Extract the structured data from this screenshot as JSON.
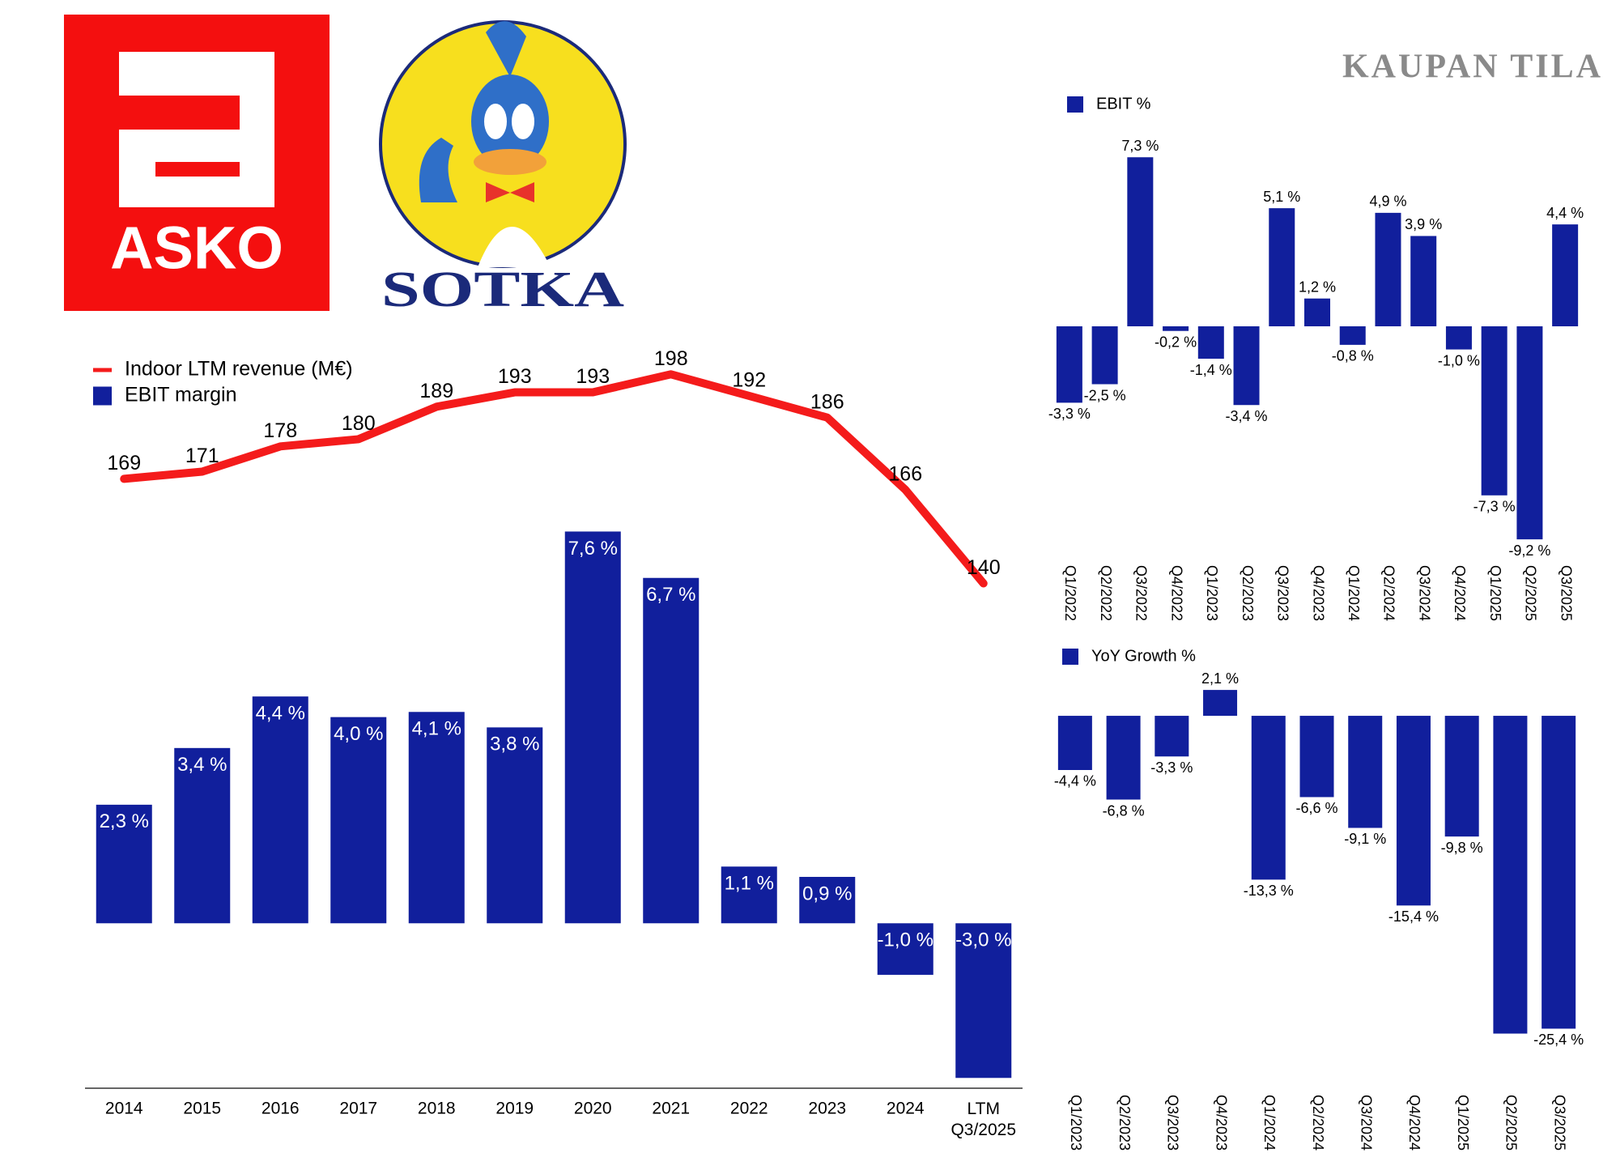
{
  "header": {
    "brand": "KAUPAN TILA",
    "logos": [
      "ASKO",
      "SOTKA"
    ]
  },
  "chart_data": [
    {
      "type": "bar_line",
      "categories": [
        "2014",
        "2015",
        "2016",
        "2017",
        "2018",
        "2019",
        "2020",
        "2021",
        "2022",
        "2023",
        "2024",
        "LTM Q3/2025"
      ],
      "series": [
        {
          "name": "Indoor LTM revenue (M€)",
          "type": "line",
          "axis": "y2",
          "color": "#f41b1b",
          "values": [
            169,
            171,
            178,
            180,
            189,
            193,
            193,
            198,
            192,
            186,
            166,
            140
          ]
        },
        {
          "name": "EBIT margin",
          "type": "bar",
          "color": "#111f9c",
          "values": [
            2.3,
            3.4,
            4.4,
            4.0,
            4.1,
            3.8,
            7.6,
            6.7,
            1.1,
            0.9,
            -1.0,
            -3.0
          ],
          "value_labels": [
            "2,3 %",
            "3,4 %",
            "4,4 %",
            "4,0 %",
            "4,1 %",
            "3,8 %",
            "7,6 %",
            "6,7 %",
            "1,1 %",
            "0,9 %",
            "-1,0 %",
            "-3,0 %"
          ]
        }
      ],
      "ylim": [
        -3.2,
        11
      ],
      "y2lim": [
        0,
        203
      ]
    },
    {
      "type": "bar",
      "categories": [
        "Q1/2022",
        "Q2/2022",
        "Q3/2022",
        "Q4/2022",
        "Q1/2023",
        "Q2/2023",
        "Q3/2023",
        "Q4/2023",
        "Q1/2024",
        "Q2/2024",
        "Q3/2024",
        "Q4/2024",
        "Q1/2025",
        "Q2/2025",
        "Q3/2025"
      ],
      "series": [
        {
          "name": "EBIT %",
          "color": "#111f9c",
          "values": [
            -3.3,
            -2.5,
            7.3,
            -0.2,
            -1.4,
            -3.4,
            5.1,
            1.2,
            -0.8,
            4.9,
            3.9,
            -1.0,
            -7.3,
            -9.2,
            4.4
          ],
          "value_labels": [
            "-3,3 %",
            "-2,5 %",
            "7,3 %",
            "-0,2 %",
            "-1,4 %",
            "-3,4 %",
            "5,1 %",
            "1,2 %",
            "-0,8 %",
            "4,9 %",
            "3,9 %",
            "-1,0 %",
            "-7,3 %",
            "-9,2 %",
            "4,4 %"
          ]
        }
      ],
      "ylim": [
        -10,
        10
      ]
    },
    {
      "type": "bar",
      "categories": [
        "Q1/2023",
        "Q2/2023",
        "Q3/2023",
        "Q4/2023",
        "Q1/2024",
        "Q2/2024",
        "Q3/2024",
        "Q4/2024",
        "Q1/2025",
        "Q2/2025",
        "Q3/2025"
      ],
      "series": [
        {
          "name": "YoY Growth %",
          "color": "#111f9c",
          "values": [
            -4.4,
            -6.8,
            -3.3,
            2.1,
            -13.3,
            -6.6,
            -9.1,
            -15.4,
            -9.8,
            -25.8,
            -25.4
          ],
          "value_labels": [
            "-4,4 %",
            "-6,8 %",
            "-3,3 %",
            "2,1 %",
            "-13,3 %",
            "-6,6 %",
            "-9,1 %",
            "-15,4 %",
            "-9,8 %",
            null,
            "-25,4 %"
          ]
        }
      ],
      "ylim": [
        -28,
        5
      ]
    }
  ]
}
